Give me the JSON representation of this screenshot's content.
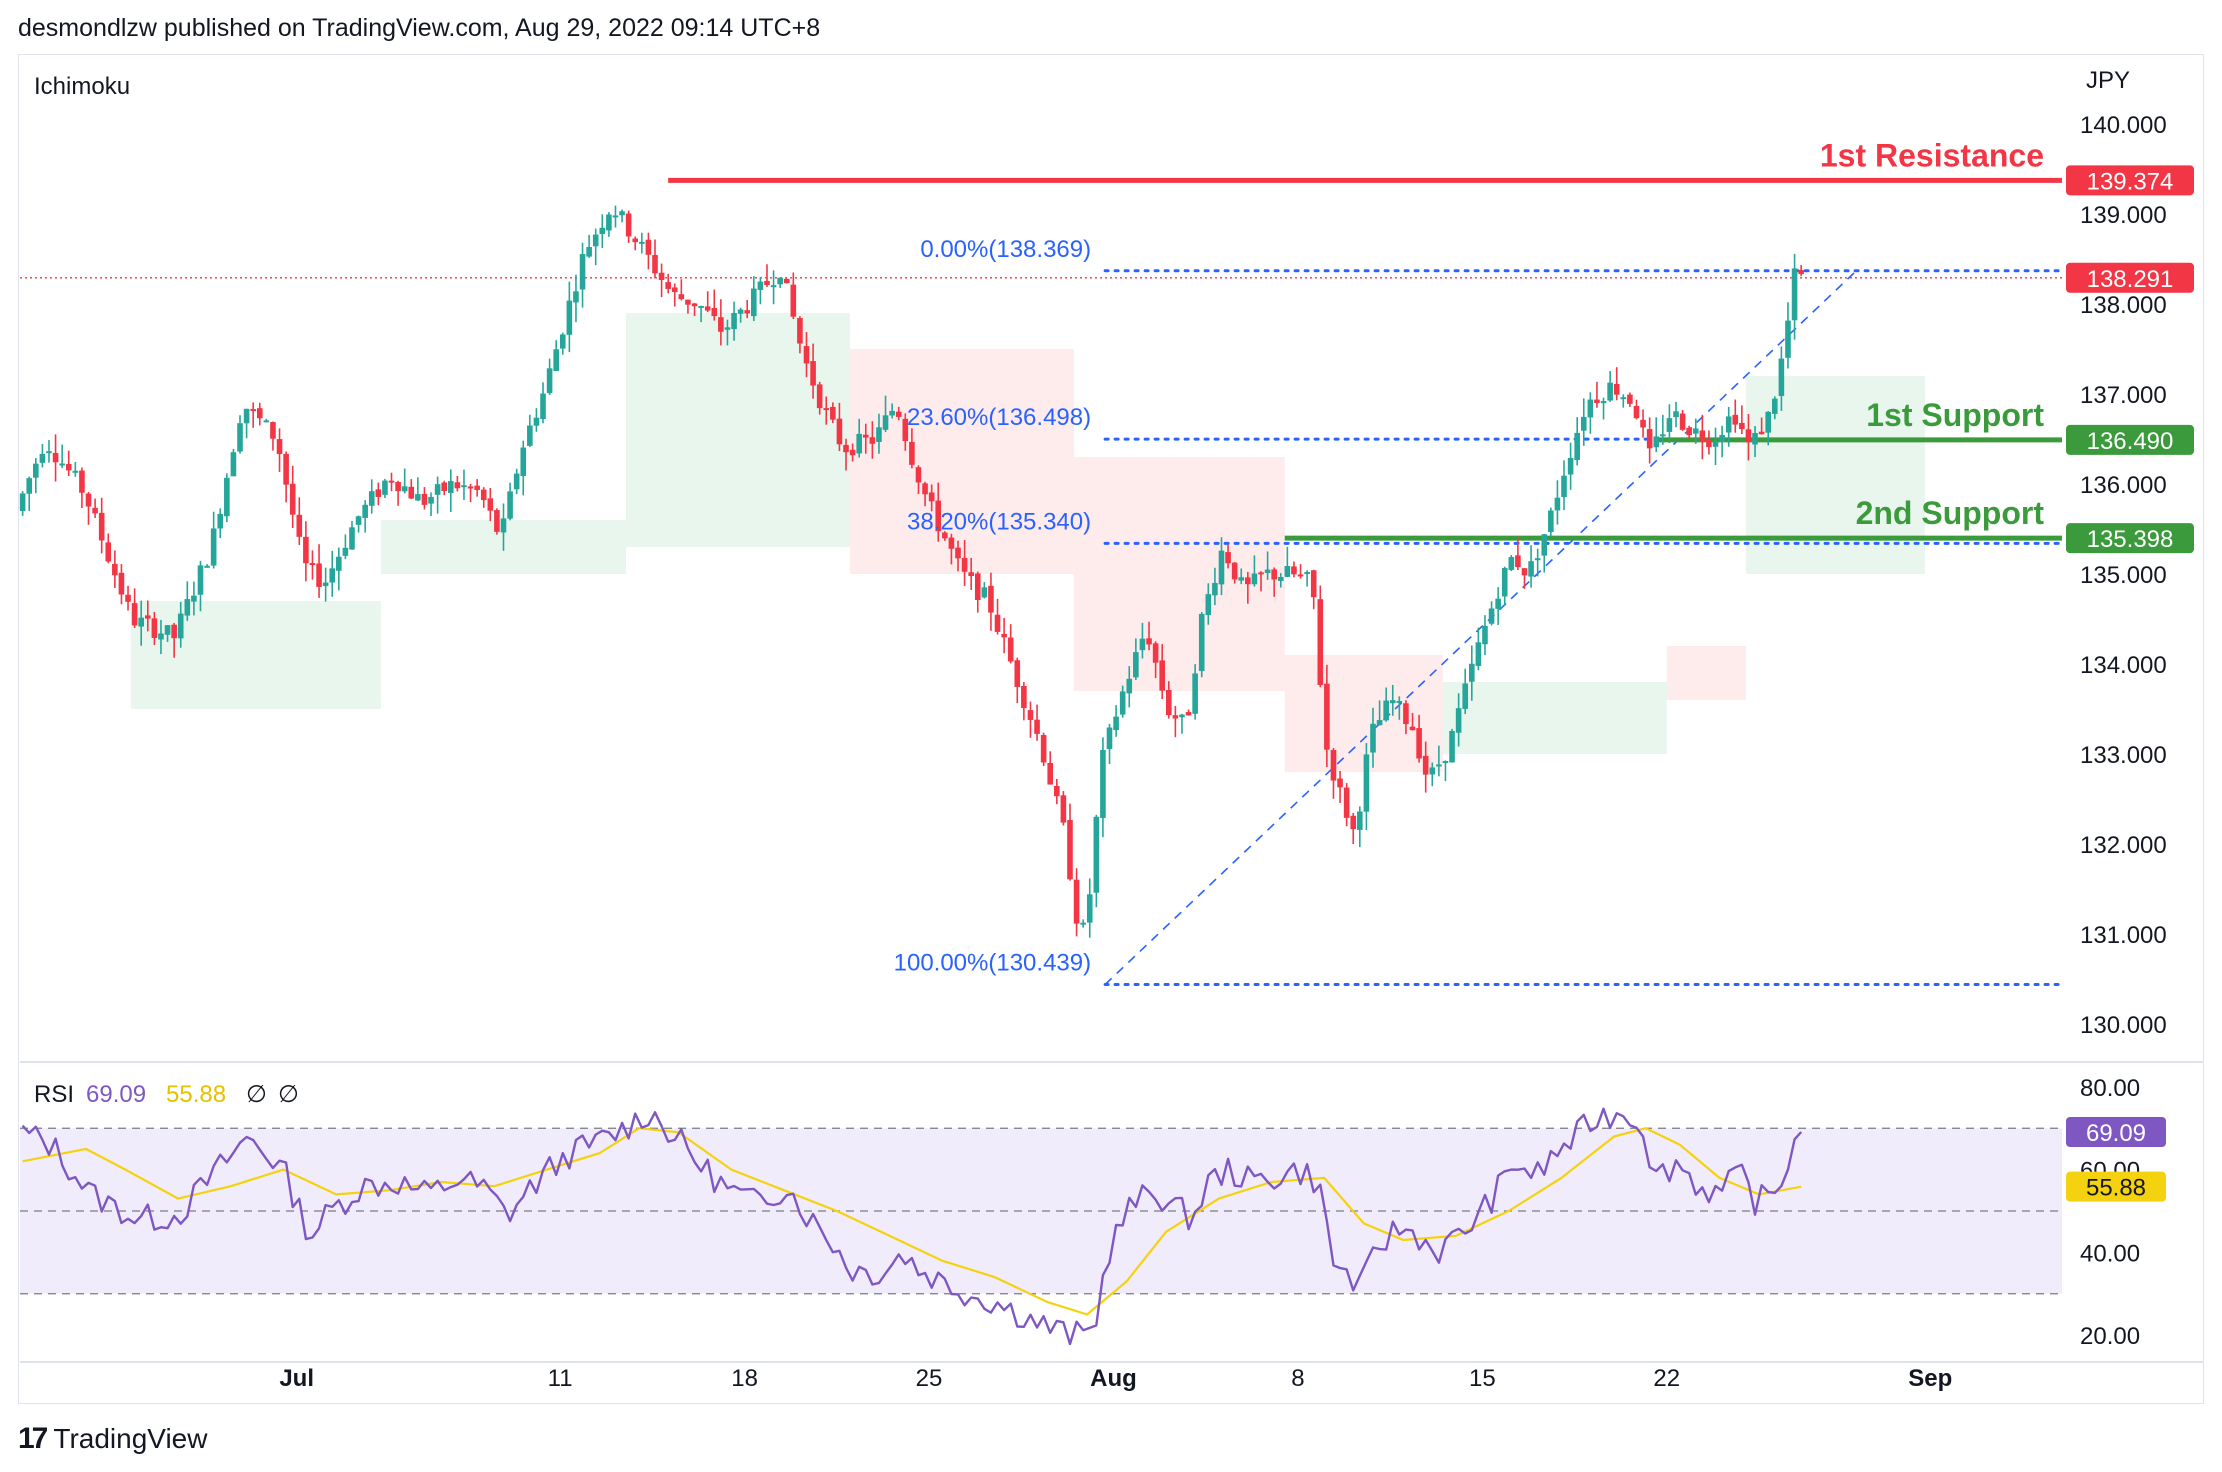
{
  "header": {
    "published_by": "desmondlzw published on TradingView.com, Aug 29, 2022 09:14 UTC+8"
  },
  "footer": {
    "logo_mark": "17",
    "brand": "TradingView"
  },
  "colors": {
    "up": "#26a69a",
    "down": "#f23645",
    "resistance": "#f23645",
    "support": "#3b9a3b",
    "fib": "#2962ff",
    "rsi": "#7e57c2",
    "rsi_ma": "#f5d20f",
    "rsi_band": "#f1ecfb"
  },
  "chart_data": [
    {
      "type": "candlestick",
      "indicator_label": "Ichimoku",
      "currency_label": "JPY",
      "ylim": [
        129.6,
        140.6
      ],
      "yticks": [
        "130.000",
        "131.000",
        "132.000",
        "133.000",
        "134.000",
        "135.000",
        "136.000",
        "137.000",
        "138.000",
        "139.000",
        "140.000"
      ],
      "xticks": [
        {
          "label": "Jul",
          "day": 1
        },
        {
          "label": "11",
          "day": 11
        },
        {
          "label": "18",
          "day": 18
        },
        {
          "label": "25",
          "day": 25
        },
        {
          "label": "Aug",
          "day": 32
        },
        {
          "label": "8",
          "day": 39
        },
        {
          "label": "15",
          "day": 46
        },
        {
          "label": "22",
          "day": 53
        },
        {
          "label": "Sep",
          "day": 63
        }
      ],
      "xlim_days": [
        -9.5,
        68
      ],
      "path_keypoints": [
        [
          -9.4,
          135.7
        ],
        [
          -8.3,
          136.5
        ],
        [
          -6.8,
          135.9
        ],
        [
          -5.0,
          134.5
        ],
        [
          -3.4,
          134.3
        ],
        [
          -2.0,
          135.3
        ],
        [
          -0.8,
          136.9
        ],
        [
          0.5,
          136.5
        ],
        [
          1.5,
          135.1
        ],
        [
          2.3,
          134.9
        ],
        [
          3.5,
          135.6
        ],
        [
          4.8,
          136.1
        ],
        [
          6.0,
          135.8
        ],
        [
          7.2,
          136.0
        ],
        [
          8.2,
          135.9
        ],
        [
          9.0,
          135.4
        ],
        [
          9.8,
          136.4
        ],
        [
          10.6,
          137.0
        ],
        [
          11.4,
          137.8
        ],
        [
          12.2,
          138.6
        ],
        [
          13.2,
          139.1
        ],
        [
          14.4,
          138.6
        ],
        [
          15.5,
          138.1
        ],
        [
          16.5,
          138.0
        ],
        [
          17.4,
          137.7
        ],
        [
          18.4,
          138.0
        ],
        [
          19.6,
          138.4
        ],
        [
          20.5,
          137.4
        ],
        [
          21.3,
          136.8
        ],
        [
          22.0,
          136.4
        ],
        [
          23.2,
          136.5
        ],
        [
          24.0,
          136.9
        ],
        [
          24.6,
          136.3
        ],
        [
          25.2,
          135.8
        ],
        [
          26.5,
          135.0
        ],
        [
          27.5,
          134.7
        ],
        [
          28.5,
          133.9
        ],
        [
          29.5,
          133.1
        ],
        [
          30.4,
          132.1
        ],
        [
          31.0,
          130.9
        ],
        [
          31.3,
          131.3
        ],
        [
          31.8,
          132.9
        ],
        [
          32.5,
          133.6
        ],
        [
          33.5,
          134.4
        ],
        [
          34.3,
          133.5
        ],
        [
          35.0,
          133.3
        ],
        [
          35.6,
          134.5
        ],
        [
          36.4,
          135.3
        ],
        [
          37.2,
          134.8
        ],
        [
          38.0,
          135.0
        ],
        [
          39.0,
          135.0
        ],
        [
          39.8,
          134.9
        ],
        [
          40.3,
          133.1
        ],
        [
          40.8,
          132.6
        ],
        [
          41.4,
          132.1
        ],
        [
          42.0,
          133.2
        ],
        [
          42.8,
          133.6
        ],
        [
          43.6,
          133.3
        ],
        [
          44.2,
          132.7
        ],
        [
          45.0,
          133.1
        ],
        [
          46.0,
          134.1
        ],
        [
          46.8,
          134.8
        ],
        [
          47.4,
          135.2
        ],
        [
          48.0,
          135.0
        ],
        [
          48.8,
          135.6
        ],
        [
          49.4,
          136.2
        ],
        [
          50.2,
          136.9
        ],
        [
          51.2,
          137.1
        ],
        [
          52.0,
          136.9
        ],
        [
          52.6,
          136.3
        ],
        [
          53.4,
          136.8
        ],
        [
          54.2,
          136.6
        ],
        [
          55.0,
          136.5
        ],
        [
          55.8,
          136.8
        ],
        [
          56.4,
          136.4
        ],
        [
          57.2,
          136.8
        ],
        [
          57.7,
          137.5
        ],
        [
          58.1,
          138.3
        ]
      ],
      "current_price": 138.291,
      "price_tags": [
        {
          "value": 139.374,
          "label": "139.374",
          "kind": "resistance"
        },
        {
          "value": 138.291,
          "label": "138.291",
          "kind": "current"
        },
        {
          "value": 136.49,
          "label": "136.490",
          "kind": "support"
        },
        {
          "value": 135.398,
          "label": "135.398",
          "kind": "support"
        }
      ],
      "levels": [
        {
          "name": "1st Resistance",
          "value": 139.374,
          "start_day": 15.1,
          "kind": "resistance"
        },
        {
          "name": "1st Support",
          "value": 136.49,
          "start_day": 52.6,
          "kind": "support"
        },
        {
          "name": "2nd Support",
          "value": 135.398,
          "start_day": 38.5,
          "kind": "support"
        }
      ],
      "fibonacci": {
        "start_day": 31.0,
        "low": 130.439,
        "end_day": 58.3,
        "high": 138.369,
        "levels": [
          {
            "label": "0.00%(138.369)",
            "value": 138.369
          },
          {
            "label": "23.60%(136.498)",
            "value": 136.498
          },
          {
            "label": "38.20%(135.340)",
            "value": 135.34
          },
          {
            "label": "100.00%(130.439)",
            "value": 130.439
          }
        ]
      },
      "ichimoku_cloud": [
        {
          "start": -5.3,
          "end": 4.2,
          "top": 134.7,
          "bottom": 133.5,
          "color": "green"
        },
        {
          "start": 4.2,
          "end": 13.5,
          "top": 135.6,
          "bottom": 135.0,
          "color": "green"
        },
        {
          "start": 13.5,
          "end": 22.0,
          "top": 137.9,
          "bottom": 135.3,
          "color": "green"
        },
        {
          "start": 22.0,
          "end": 30.5,
          "top": 137.5,
          "bottom": 135.0,
          "color": "red"
        },
        {
          "start": 30.5,
          "end": 38.5,
          "top": 136.3,
          "bottom": 133.7,
          "color": "red"
        },
        {
          "start": 38.5,
          "end": 44.5,
          "top": 134.1,
          "bottom": 132.8,
          "color": "red"
        },
        {
          "start": 44.5,
          "end": 53.0,
          "top": 133.8,
          "bottom": 133.0,
          "color": "green"
        },
        {
          "start": 53.0,
          "end": 56.0,
          "top": 134.2,
          "bottom": 133.6,
          "color": "red"
        },
        {
          "start": 56.0,
          "end": 62.8,
          "top": 137.2,
          "bottom": 135.0,
          "color": "green"
        }
      ]
    },
    {
      "type": "line",
      "indicator_label": "RSI",
      "rsi_value_text": "69.09",
      "rsi_ma_value_text": "55.88",
      "extra_labels": [
        "∅",
        "∅"
      ],
      "ylim": [
        14,
        86
      ],
      "yticks": [
        "20.00",
        "40.00",
        "60.00",
        "80.00"
      ],
      "bands": [
        30,
        50,
        70
      ],
      "value_tags": [
        {
          "value": 69.09,
          "label": "69.09",
          "kind": "rsi"
        },
        {
          "value": 55.88,
          "label": "55.88",
          "kind": "rsi_ma"
        }
      ],
      "rsi_keypoints": [
        [
          -9.4,
          69
        ],
        [
          -8.3,
          66
        ],
        [
          -6.8,
          54
        ],
        [
          -5.0,
          48
        ],
        [
          -3.5,
          49
        ],
        [
          -2.0,
          60
        ],
        [
          -0.8,
          68
        ],
        [
          0.5,
          60
        ],
        [
          1.5,
          44
        ],
        [
          2.3,
          50
        ],
        [
          3.5,
          56
        ],
        [
          4.8,
          57
        ],
        [
          6.0,
          54
        ],
        [
          7.2,
          58
        ],
        [
          8.2,
          55
        ],
        [
          9.0,
          49
        ],
        [
          9.8,
          55
        ],
        [
          10.6,
          60
        ],
        [
          11.4,
          64
        ],
        [
          12.2,
          66
        ],
        [
          13.2,
          69
        ],
        [
          14.4,
          74
        ],
        [
          15.5,
          67
        ],
        [
          16.5,
          60
        ],
        [
          17.4,
          55
        ],
        [
          18.4,
          52
        ],
        [
          19.6,
          56
        ],
        [
          20.5,
          48
        ],
        [
          21.3,
          43
        ],
        [
          22.0,
          36
        ],
        [
          23.2,
          35
        ],
        [
          24.0,
          40
        ],
        [
          24.6,
          36
        ],
        [
          25.2,
          34
        ],
        [
          26.5,
          30
        ],
        [
          27.5,
          28
        ],
        [
          28.5,
          25
        ],
        [
          29.5,
          22
        ],
        [
          30.4,
          20
        ],
        [
          31.0,
          20
        ],
        [
          31.3,
          23
        ],
        [
          31.8,
          40
        ],
        [
          32.5,
          50
        ],
        [
          33.5,
          55
        ],
        [
          34.3,
          51
        ],
        [
          35.0,
          48
        ],
        [
          35.6,
          57
        ],
        [
          36.4,
          60
        ],
        [
          37.2,
          57
        ],
        [
          38.0,
          58
        ],
        [
          39.0,
          60
        ],
        [
          39.8,
          57
        ],
        [
          40.3,
          38
        ],
        [
          40.8,
          35
        ],
        [
          41.4,
          31
        ],
        [
          42.0,
          41
        ],
        [
          42.8,
          46
        ],
        [
          43.6,
          44
        ],
        [
          44.2,
          40
        ],
        [
          45.0,
          43
        ],
        [
          46.0,
          50
        ],
        [
          46.8,
          57
        ],
        [
          47.4,
          62
        ],
        [
          48.0,
          58
        ],
        [
          48.8,
          64
        ],
        [
          49.4,
          67
        ],
        [
          50.2,
          72
        ],
        [
          51.2,
          74
        ],
        [
          52.0,
          72
        ],
        [
          52.6,
          58
        ],
        [
          53.4,
          62
        ],
        [
          54.2,
          56
        ],
        [
          55.0,
          54
        ],
        [
          55.8,
          59
        ],
        [
          56.4,
          52
        ],
        [
          57.2,
          55
        ],
        [
          57.7,
          64
        ],
        [
          58.1,
          69.09
        ]
      ],
      "ma_keypoints": [
        [
          -9.4,
          62
        ],
        [
          -7.0,
          65
        ],
        [
          -5.5,
          60
        ],
        [
          -3.5,
          53
        ],
        [
          -1.5,
          56
        ],
        [
          0.5,
          60
        ],
        [
          2.5,
          54
        ],
        [
          4.5,
          55
        ],
        [
          6.5,
          57
        ],
        [
          8.5,
          56
        ],
        [
          10.5,
          60
        ],
        [
          12.5,
          64
        ],
        [
          14.0,
          70
        ],
        [
          15.5,
          69
        ],
        [
          17.5,
          60
        ],
        [
          19.5,
          55
        ],
        [
          21.5,
          50
        ],
        [
          23.5,
          44
        ],
        [
          25.5,
          38
        ],
        [
          27.5,
          34
        ],
        [
          29.5,
          28
        ],
        [
          31.0,
          25
        ],
        [
          32.5,
          33
        ],
        [
          34.0,
          45
        ],
        [
          36.0,
          53
        ],
        [
          38.0,
          57
        ],
        [
          40.0,
          58
        ],
        [
          41.5,
          47
        ],
        [
          43.0,
          43
        ],
        [
          45.0,
          44
        ],
        [
          47.0,
          50
        ],
        [
          49.0,
          58
        ],
        [
          51.0,
          68
        ],
        [
          52.2,
          70
        ],
        [
          53.5,
          66
        ],
        [
          55.0,
          58
        ],
        [
          56.5,
          54
        ],
        [
          58.1,
          55.88
        ]
      ]
    }
  ]
}
